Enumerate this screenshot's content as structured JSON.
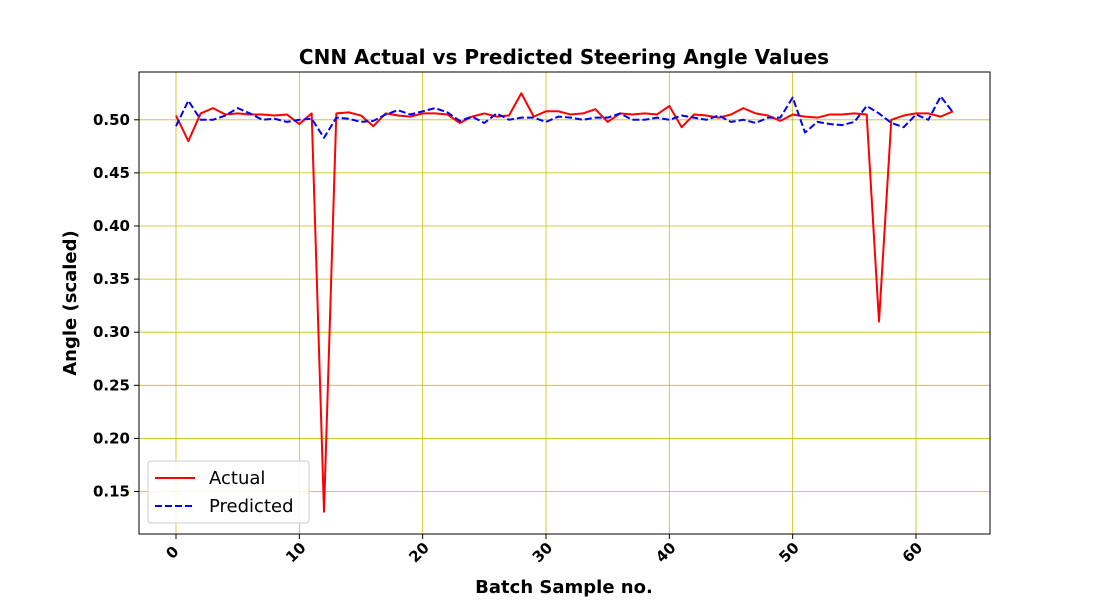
{
  "chart_data": {
    "type": "line",
    "title": "CNN Actual vs Predicted Steering Angle Values",
    "xlabel": "Batch Sample no.",
    "ylabel": "Angle (scaled)",
    "xlim": [
      -3,
      66
    ],
    "ylim": [
      0.11,
      0.545
    ],
    "xticks": [
      0,
      10,
      20,
      30,
      40,
      50,
      60
    ],
    "xtick_labels": [
      "0",
      "10",
      "20",
      "30",
      "40",
      "50",
      "60"
    ],
    "yticks": [
      0.15,
      0.2,
      0.25,
      0.3,
      0.35,
      0.4,
      0.45,
      0.5
    ],
    "ytick_labels": [
      "0.15",
      "0.20",
      "0.25",
      "0.30",
      "0.35",
      "0.40",
      "0.45",
      "0.50"
    ],
    "grid": true,
    "grid_color": "#c8c000",
    "legend_position": "lower-left",
    "x": [
      0,
      1,
      2,
      3,
      4,
      5,
      6,
      7,
      8,
      9,
      10,
      11,
      12,
      13,
      14,
      15,
      16,
      17,
      18,
      19,
      20,
      21,
      22,
      23,
      24,
      25,
      26,
      27,
      28,
      29,
      30,
      31,
      32,
      33,
      34,
      35,
      36,
      37,
      38,
      39,
      40,
      41,
      42,
      43,
      44,
      45,
      46,
      47,
      48,
      49,
      50,
      51,
      52,
      53,
      54,
      55,
      56,
      57,
      58,
      59,
      60,
      61,
      62,
      63
    ],
    "series": [
      {
        "name": "Actual",
        "color": "#ff0000",
        "style": "solid",
        "values": [
          0.504,
          0.48,
          0.506,
          0.511,
          0.505,
          0.506,
          0.505,
          0.505,
          0.504,
          0.505,
          0.496,
          0.506,
          0.131,
          0.506,
          0.507,
          0.504,
          0.494,
          0.506,
          0.504,
          0.503,
          0.506,
          0.506,
          0.505,
          0.497,
          0.503,
          0.506,
          0.503,
          0.504,
          0.525,
          0.503,
          0.508,
          0.508,
          0.505,
          0.506,
          0.51,
          0.498,
          0.506,
          0.505,
          0.506,
          0.505,
          0.513,
          0.493,
          0.505,
          0.504,
          0.502,
          0.505,
          0.511,
          0.506,
          0.504,
          0.499,
          0.505,
          0.503,
          0.502,
          0.505,
          0.505,
          0.506,
          0.505,
          0.31,
          0.5,
          0.504,
          0.506,
          0.506,
          0.503,
          0.508
        ]
      },
      {
        "name": "Predicted",
        "color": "#0000ff",
        "style": "dashed",
        "values": [
          0.494,
          0.518,
          0.5,
          0.5,
          0.504,
          0.511,
          0.506,
          0.5,
          0.501,
          0.498,
          0.5,
          0.501,
          0.483,
          0.502,
          0.501,
          0.498,
          0.499,
          0.505,
          0.509,
          0.505,
          0.508,
          0.511,
          0.507,
          0.499,
          0.503,
          0.497,
          0.506,
          0.5,
          0.502,
          0.502,
          0.498,
          0.503,
          0.502,
          0.5,
          0.502,
          0.502,
          0.506,
          0.5,
          0.5,
          0.502,
          0.5,
          0.504,
          0.502,
          0.5,
          0.504,
          0.498,
          0.5,
          0.497,
          0.502,
          0.502,
          0.521,
          0.488,
          0.498,
          0.496,
          0.495,
          0.498,
          0.513,
          0.506,
          0.497,
          0.493,
          0.505,
          0.5,
          0.522,
          0.507
        ]
      }
    ]
  }
}
